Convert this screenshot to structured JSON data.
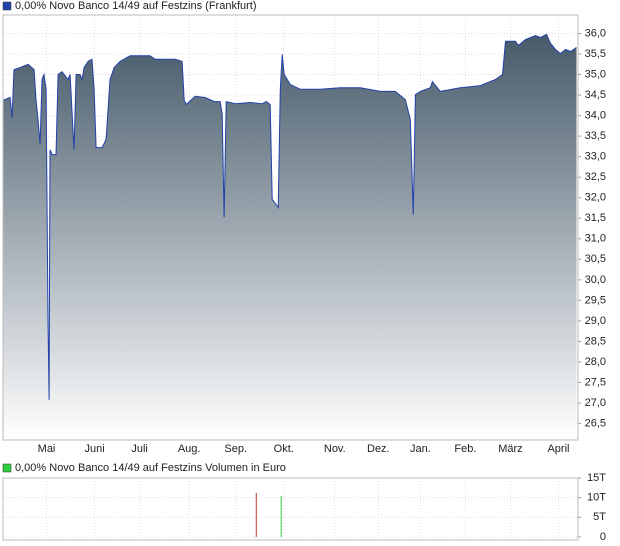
{
  "chart_data": [
    {
      "type": "area",
      "series": [
        {
          "name": "0,00% Novo Banco 14/49 auf Festzins (Frankfurt)",
          "color": "#2341a8",
          "values": [
            34.37,
            34.44,
            33.95,
            35.12,
            35.17,
            35.25,
            35.12,
            34.39,
            33.91,
            33.3,
            34.88,
            35.0,
            34.64,
            29.03,
            27.08,
            33.17,
            33.05,
            33.05,
            35.0,
            35.07,
            34.88,
            35.0,
            33.17,
            35.0,
            35.0,
            34.88,
            35.17,
            35.32,
            35.37,
            34.64,
            33.22,
            33.22,
            33.42,
            34.88,
            35.17,
            35.32,
            35.46,
            35.46,
            35.37,
            35.37,
            35.32,
            34.37,
            34.27,
            34.47,
            34.44,
            34.34,
            34.34,
            34.03,
            31.52,
            34.34,
            34.29,
            34.32,
            34.29,
            34.34,
            34.27,
            31.96,
            31.83,
            31.76,
            34.64,
            35.49,
            35.0,
            34.76,
            34.64,
            34.64,
            34.68,
            34.68,
            34.59,
            34.59,
            34.39,
            33.91,
            31.59,
            34.51,
            34.59,
            34.68,
            34.83,
            34.59,
            34.68,
            34.73,
            34.88,
            35.0,
            35.81,
            35.81,
            35.71,
            35.85,
            35.95,
            35.9,
            35.98,
            35.76,
            35.61,
            35.51,
            35.61,
            35.56,
            35.66
          ]
        }
      ],
      "x": [
        0,
        4.7,
        6,
        7.3,
        11.3,
        16.7,
        20.7,
        22,
        23.3,
        24.7,
        26,
        27.3,
        28.7,
        30,
        30.7,
        31.3,
        32.7,
        35.3,
        36.7,
        39.3,
        43.3,
        44.7,
        47.3,
        48.7,
        51.3,
        52.7,
        54,
        56.7,
        59.3,
        60.7,
        62,
        66,
        68.7,
        71.3,
        74,
        78,
        84.7,
        98,
        101.3,
        114.7,
        119.3,
        120.7,
        122,
        128,
        134.7,
        140.7,
        144.7,
        146,
        147.3,
        148.7,
        154.7,
        164.7,
        172.7,
        175.3,
        178,
        179.3,
        182,
        183.3,
        184.7,
        186,
        187.3,
        191.3,
        198,
        211.3,
        224.7,
        238,
        251.3,
        261.3,
        268,
        271.3,
        273.3,
        274.7,
        278,
        284.7,
        286,
        291.3,
        304.7,
        318,
        328,
        332.7,
        334.7,
        341.3,
        343.3,
        348,
        354.7,
        358,
        362,
        364.7,
        368,
        371.3,
        374.7,
        378,
        382
      ],
      "xlim": [
        0,
        383
      ],
      "xticks": [
        {
          "value": 29,
          "label": "Mai"
        },
        {
          "value": 61,
          "label": "Juni"
        },
        {
          "value": 91,
          "label": "Juli"
        },
        {
          "value": 124,
          "label": "Aug."
        },
        {
          "value": 155,
          "label": "Sep."
        },
        {
          "value": 187,
          "label": "Okt."
        },
        {
          "value": 221,
          "label": "Nov."
        },
        {
          "value": 250,
          "label": "Dez."
        },
        {
          "value": 278,
          "label": "Jan."
        },
        {
          "value": 308,
          "label": "Feb."
        },
        {
          "value": 338,
          "label": "März"
        },
        {
          "value": 370,
          "label": "April"
        }
      ],
      "ylim": [
        26.1,
        36.45
      ],
      "yticks": [
        {
          "value": 26.5,
          "label": "26,5"
        },
        {
          "value": 27,
          "label": "27,0"
        },
        {
          "value": 27.5,
          "label": "27,5"
        },
        {
          "value": 28,
          "label": "28,0"
        },
        {
          "value": 28.5,
          "label": "28,5"
        },
        {
          "value": 29,
          "label": "29,0"
        },
        {
          "value": 29.5,
          "label": "29,5"
        },
        {
          "value": 30,
          "label": "30,0"
        },
        {
          "value": 30.5,
          "label": "30,5"
        },
        {
          "value": 31,
          "label": "31,0"
        },
        {
          "value": 31.5,
          "label": "31,5"
        },
        {
          "value": 32,
          "label": "32,0"
        },
        {
          "value": 32.5,
          "label": "32,5"
        },
        {
          "value": 33,
          "label": "33,0"
        },
        {
          "value": 33.5,
          "label": "33,5"
        },
        {
          "value": 34,
          "label": "34,0"
        },
        {
          "value": 34.5,
          "label": "34,5"
        },
        {
          "value": 35,
          "label": "35,0"
        },
        {
          "value": 35.5,
          "label": "35,5"
        },
        {
          "value": 36,
          "label": "36,0"
        }
      ],
      "grid": true
    },
    {
      "type": "bar",
      "series": [
        {
          "name": "0,00% Novo Banco 14/49 auf Festzins Volumen in Euro",
          "color": "#2ecc40",
          "values": [
            11200,
            10400
          ]
        }
      ],
      "x": [
        168.7,
        185.3
      ],
      "colors": [
        "#c0392b",
        "#2ecc40"
      ],
      "xlim": [
        0,
        383
      ],
      "ylim": [
        0,
        15000
      ],
      "yticks": [
        0,
        {
          "value": 5000,
          "label": "5T"
        },
        {
          "value": 10000,
          "label": "10T"
        },
        {
          "value": 15000,
          "label": "15T"
        }
      ],
      "grid": true
    }
  ]
}
